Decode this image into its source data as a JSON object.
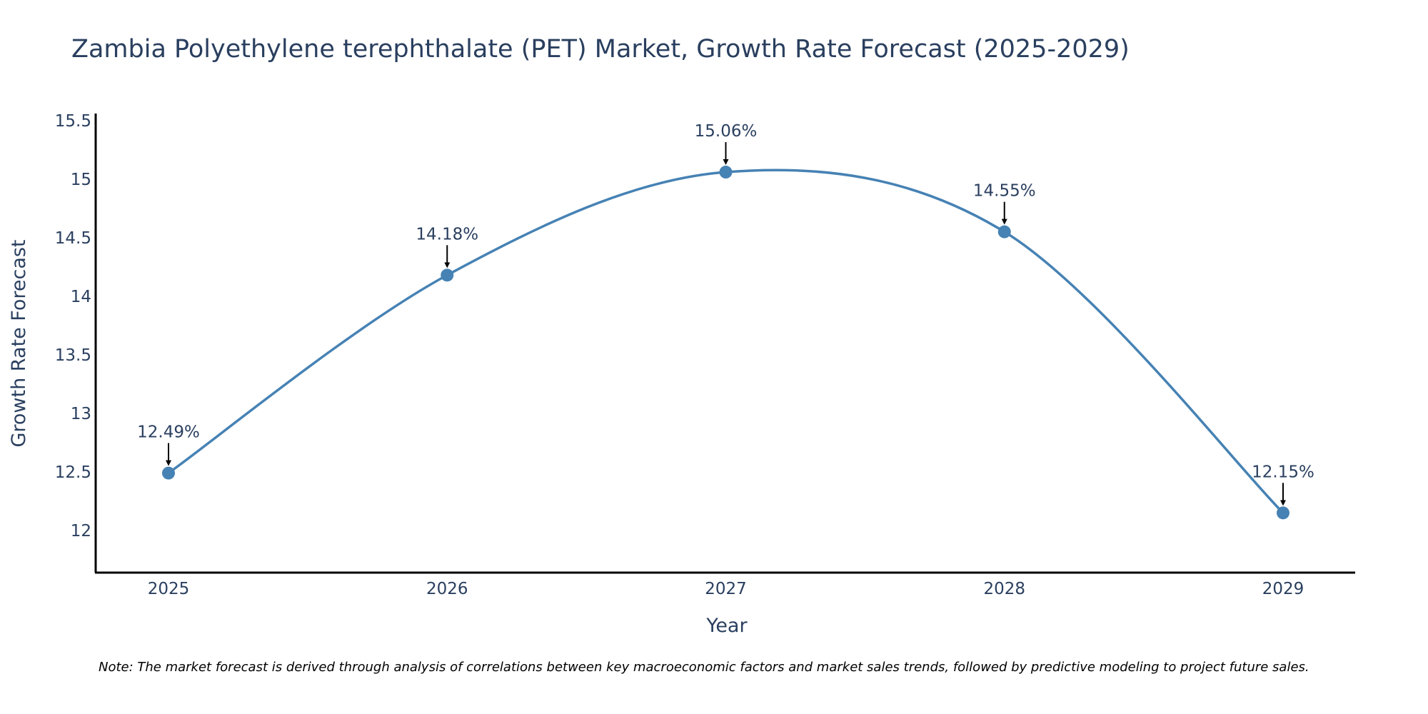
{
  "chart_data": {
    "type": "line",
    "title": "Zambia Polyethylene terephthalate (PET) Market, Growth Rate Forecast (2025-2029)",
    "xlabel": "Year",
    "ylabel": "Growth Rate Forecast",
    "categories": [
      "2025",
      "2026",
      "2027",
      "2028",
      "2029"
    ],
    "series": [
      {
        "name": "Growth Rate Forecast",
        "values": [
          12.49,
          14.18,
          15.06,
          14.55,
          12.15
        ]
      }
    ],
    "data_labels": [
      "12.49%",
      "14.18%",
      "15.06%",
      "14.55%",
      "12.15%"
    ],
    "y_ticks": [
      12,
      12.5,
      13,
      13.5,
      14,
      14.5,
      15,
      15.5
    ],
    "y_tick_labels": [
      "12",
      "12.5",
      "13",
      "13.5",
      "14",
      "14.5",
      "15",
      "15.5"
    ],
    "ylim": [
      11.64,
      15.56
    ],
    "grid": false,
    "line_color": "#4682b4",
    "marker_color": "#4682b4",
    "note": "Note: The market forecast is derived through analysis of correlations between key macroeconomic factors and market sales trends, followed by predictive modeling to project future sales."
  }
}
